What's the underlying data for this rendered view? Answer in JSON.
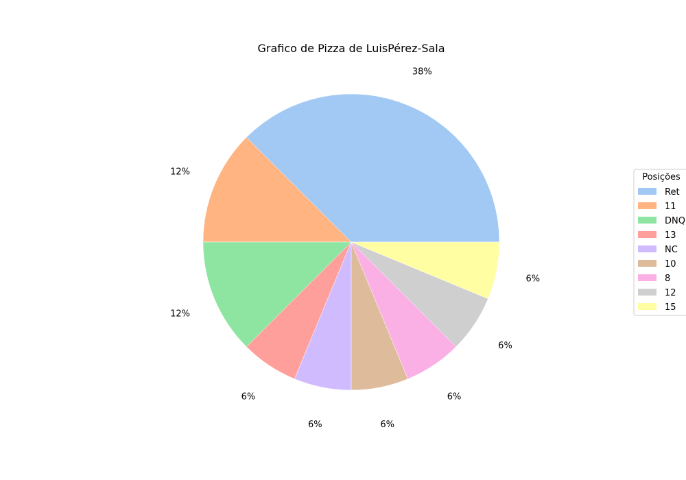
{
  "chart_data": {
    "type": "pie",
    "title": "Grafico de Pizza de LuisPérez-Sala",
    "legend_title": "Posições",
    "legend_placement": "center-right",
    "start_angle_deg": 0,
    "direction": "counterclockwise",
    "slices": [
      {
        "label": "Ret",
        "value": 6,
        "pct_label": "38%",
        "color": "#a1c9f4"
      },
      {
        "label": "11",
        "value": 2,
        "pct_label": "12%",
        "color": "#ffb482"
      },
      {
        "label": "DNQ",
        "value": 2,
        "pct_label": "12%",
        "color": "#8de5a1"
      },
      {
        "label": "13",
        "value": 1,
        "pct_label": "6%",
        "color": "#ff9f9b"
      },
      {
        "label": "NC",
        "value": 1,
        "pct_label": "6%",
        "color": "#d0bbff"
      },
      {
        "label": "10",
        "value": 1,
        "pct_label": "6%",
        "color": "#debb9b"
      },
      {
        "label": "8",
        "value": 1,
        "pct_label": "6%",
        "color": "#fab0e4"
      },
      {
        "label": "12",
        "value": 1,
        "pct_label": "6%",
        "color": "#cfcfcf"
      },
      {
        "label": "15",
        "value": 1,
        "pct_label": "6%",
        "color": "#fffea3"
      }
    ]
  }
}
